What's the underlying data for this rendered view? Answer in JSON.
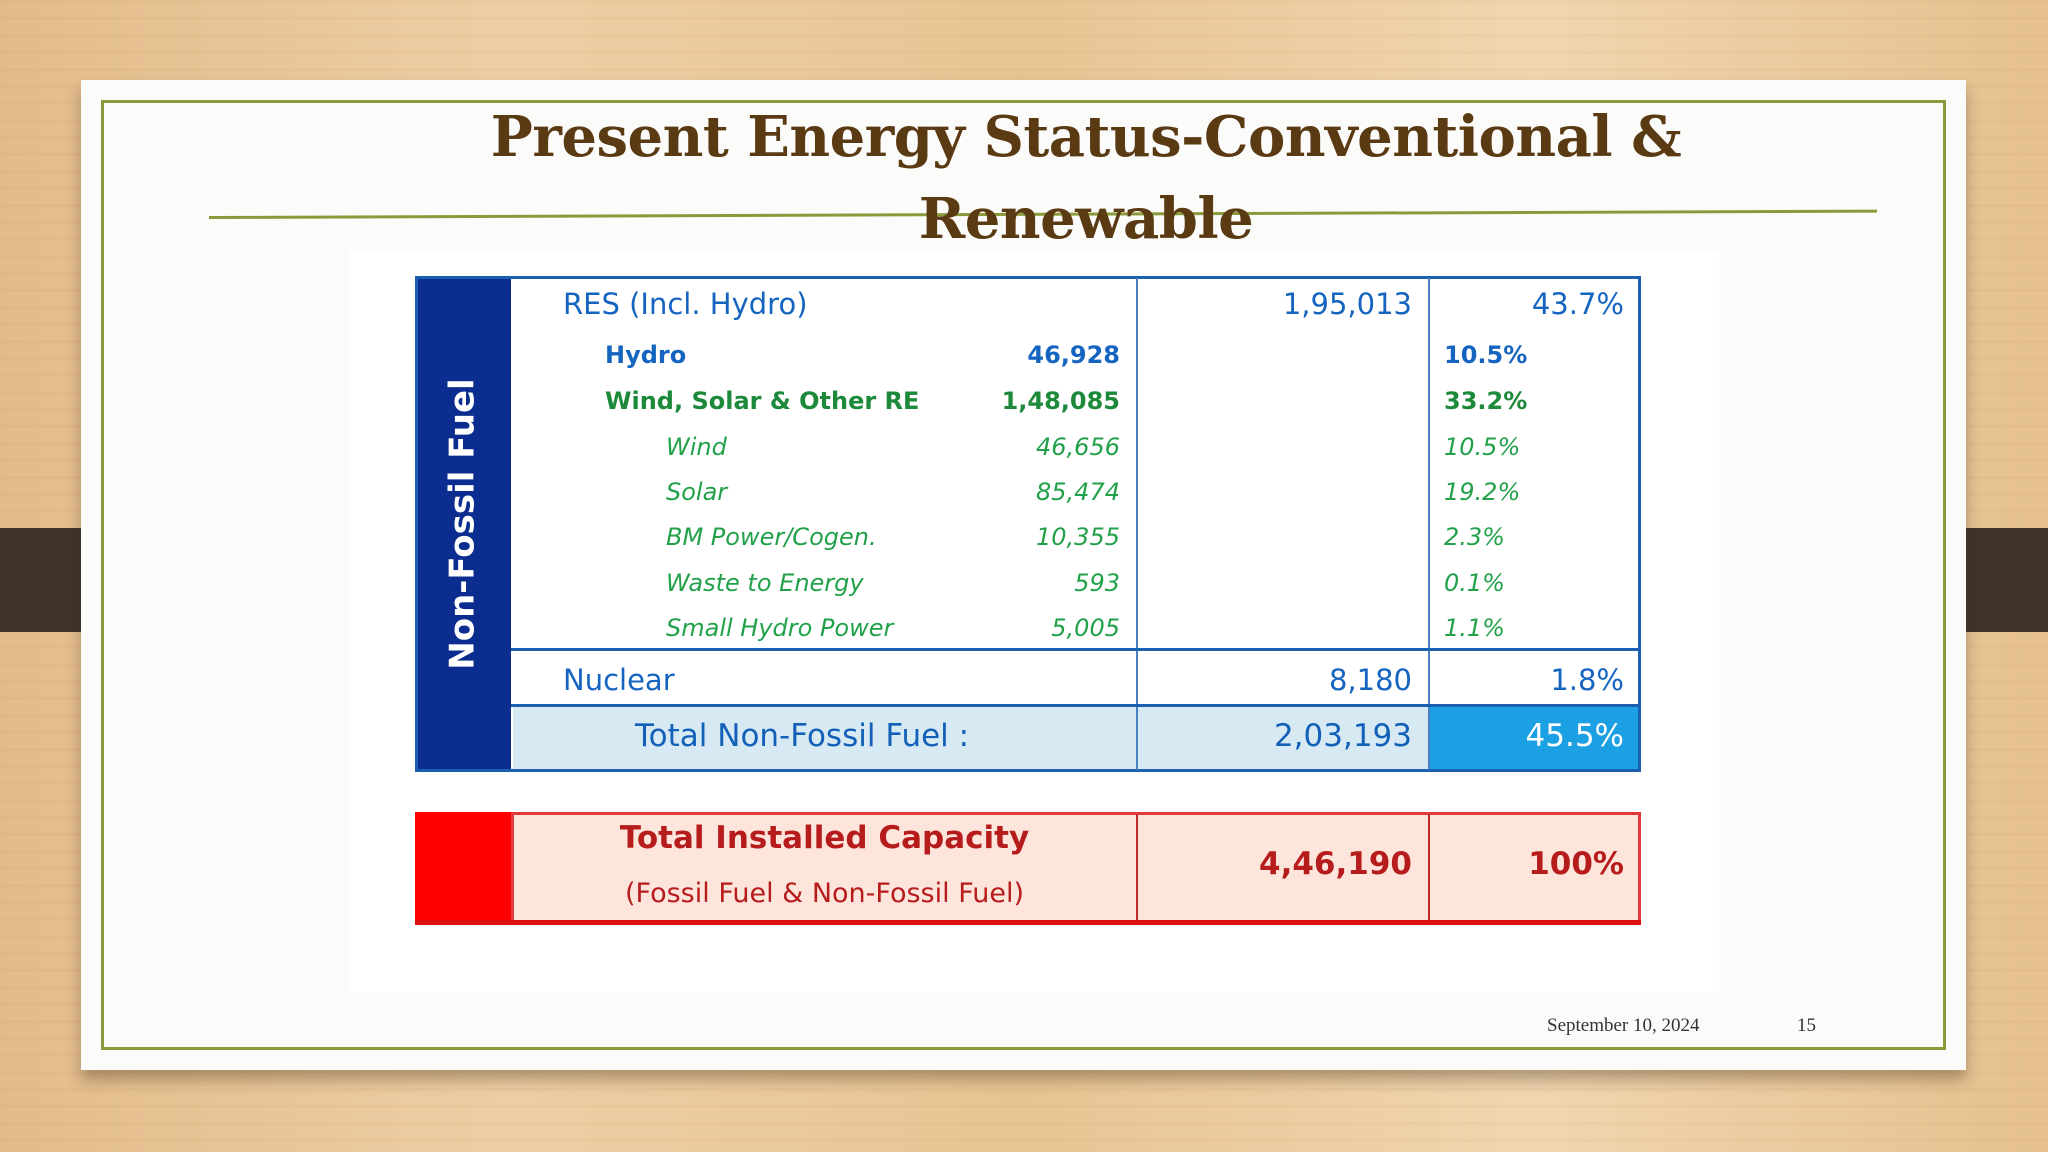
{
  "slide": {
    "title": "Present Energy Status-Conventional & Renewable",
    "date": "September 10, 2024",
    "page": "15"
  },
  "table": {
    "side_label": "Non-Fossil Fuel",
    "res": {
      "label": "RES (Incl. Hydro)",
      "value": "1,95,013",
      "pct": "43.7%"
    },
    "hydro": {
      "label": "Hydro",
      "value": "46,928",
      "pct": "10.5%"
    },
    "wsre": {
      "label": "Wind, Solar & Other RE",
      "value": "1,48,085",
      "pct": "33.2%"
    },
    "items": [
      {
        "label": "Wind",
        "value": "46,656",
        "pct": "10.5%"
      },
      {
        "label": "Solar",
        "value": "85,474",
        "pct": "19.2%"
      },
      {
        "label": "BM Power/Cogen.",
        "value": "10,355",
        "pct": "2.3%"
      },
      {
        "label": "Waste to Energy",
        "value": "593",
        "pct": "0.1%"
      },
      {
        "label": "Small Hydro Power",
        "value": "5,005",
        "pct": "1.1%"
      }
    ],
    "nuclear": {
      "label": "Nuclear",
      "value": "8,180",
      "pct": "1.8%"
    },
    "total_nff": {
      "label": "Total Non-Fossil Fuel :",
      "value": "2,03,193",
      "pct": "45.5%"
    },
    "total_installed": {
      "label": "Total Installed Capacity",
      "sublabel": "(Fossil Fuel & Non-Fossil Fuel)",
      "value": "4,46,190",
      "pct": "100%"
    }
  }
}
